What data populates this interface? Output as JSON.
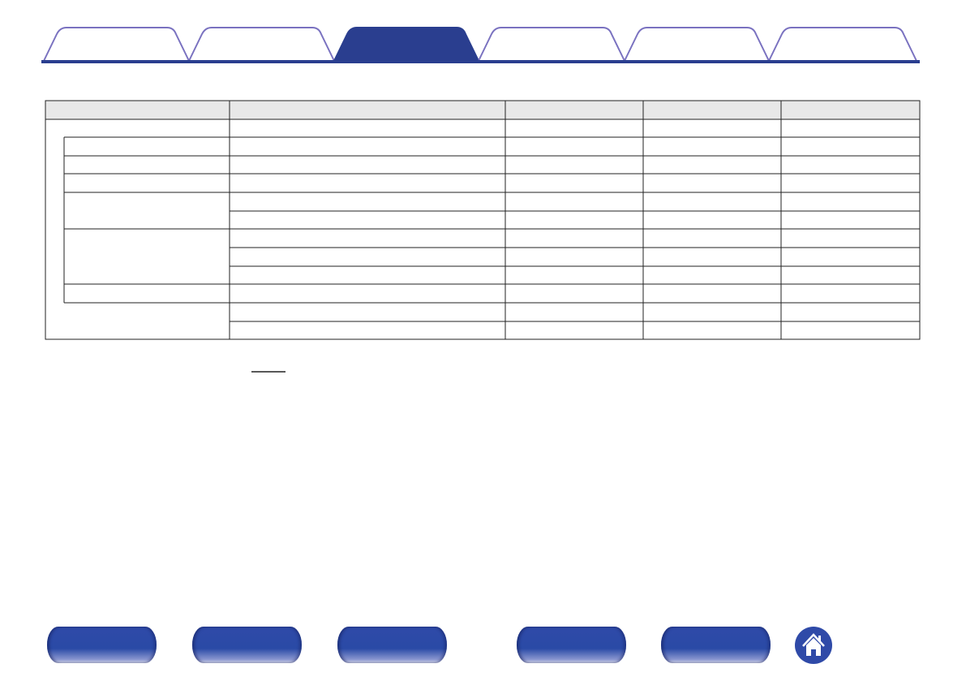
{
  "colors": {
    "accent": "#2a3e8f",
    "tab_outline": "#7a72c0",
    "header_bg": "#e8e8e8",
    "button_blue": "#2f4aa8"
  },
  "tabs": [
    {
      "active": false
    },
    {
      "active": false
    },
    {
      "active": true
    },
    {
      "active": false
    },
    {
      "active": false
    },
    {
      "active": false
    }
  ],
  "footer": {
    "buttons": 5,
    "home_icon": "home-icon"
  }
}
